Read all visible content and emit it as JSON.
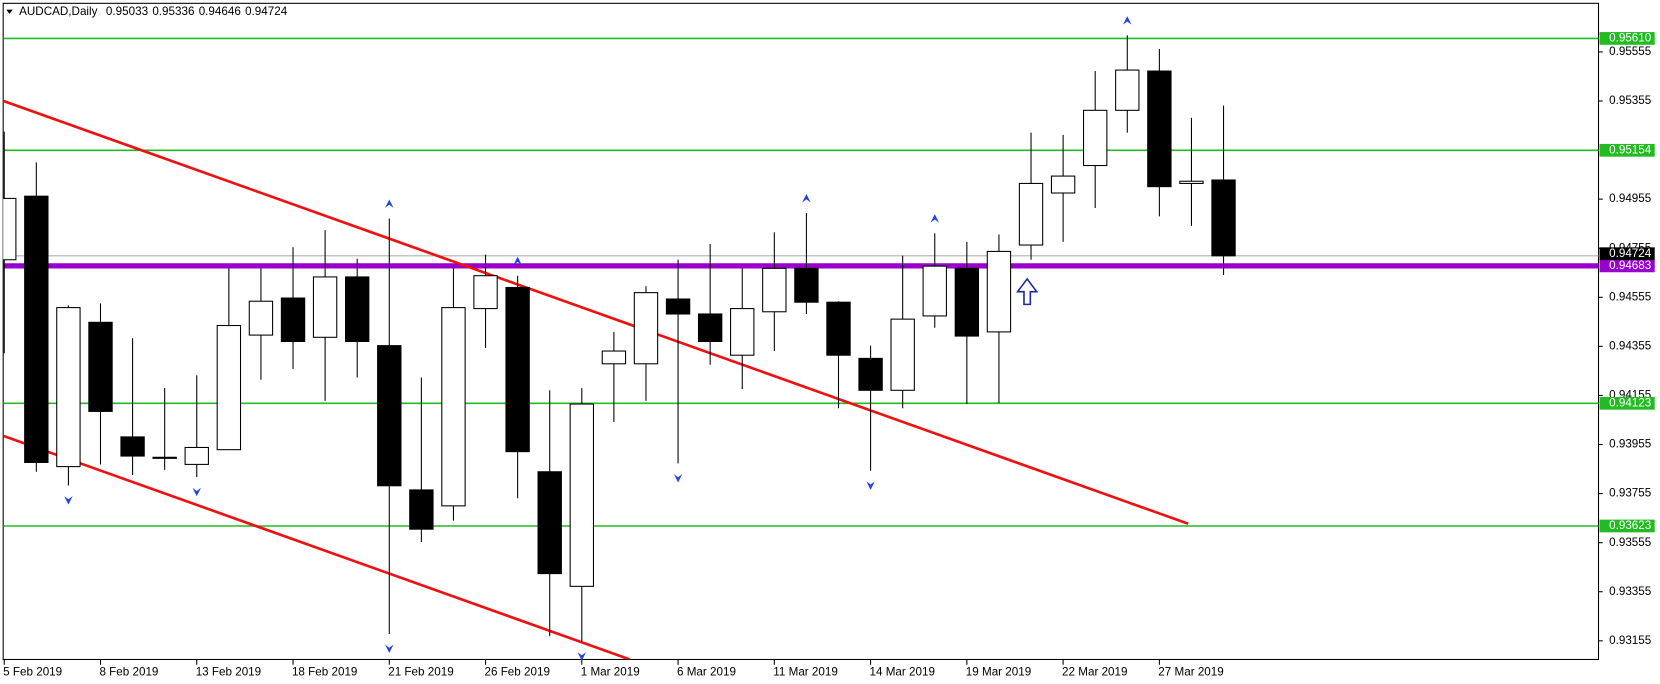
{
  "chart_data": {
    "type": "candlestick",
    "title": "AUDCAD,Daily",
    "categories": [
      "5 Feb 2019",
      null,
      null,
      "8 Feb 2019",
      null,
      null,
      "13 Feb 2019",
      null,
      null,
      "18 Feb 2019",
      null,
      null,
      "21 Feb 2019",
      null,
      null,
      "26 Feb 2019",
      null,
      null,
      "1 Mar 2019",
      null,
      null,
      "6 Mar 2019",
      null,
      null,
      "11 Mar 2019",
      null,
      null,
      "14 Mar 2019",
      null,
      null,
      "19 Mar 2019",
      null,
      null,
      "22 Mar 2019",
      null,
      null,
      "27 Mar 2019",
      null,
      null
    ],
    "open": [
      0.94708,
      0.94967,
      0.93865,
      0.94453,
      0.93986,
      0.939,
      0.93874,
      0.93934,
      0.94401,
      0.94552,
      0.94392,
      0.94638,
      0.94358,
      0.9377,
      0.93705,
      0.94509,
      0.94595,
      0.93844,
      0.93377,
      0.94284,
      0.94284,
      0.94548,
      0.94487,
      0.94319,
      0.94496,
      0.94673,
      0.94535,
      0.94306,
      0.94176,
      0.94479,
      0.94673,
      0.94414,
      0.94768,
      0.9498,
      0.95092,
      0.95317,
      0.95477,
      0.95019,
      0.95033
    ],
    "high": [
      0.9523,
      0.95105,
      0.94522,
      0.9453,
      0.94388,
      0.94185,
      0.94237,
      0.94673,
      0.94673,
      0.94759,
      0.94829,
      0.94712,
      0.94876,
      0.94228,
      0.94686,
      0.94729,
      0.94643,
      0.94176,
      0.94185,
      0.94414,
      0.946,
      0.94708,
      0.94772,
      0.94673,
      0.9482,
      0.94898,
      0.94539,
      0.94358,
      0.94725,
      0.94816,
      0.94781,
      0.94811,
      0.95226,
      0.95217,
      0.95477,
      0.95623,
      0.95567,
      0.95286,
      0.95336
    ],
    "low": [
      0.94327,
      0.93844,
      0.93788,
      0.93874,
      0.93831,
      0.93852,
      0.93822,
      0.93934,
      0.94219,
      0.94263,
      0.94133,
      0.94228,
      0.93183,
      0.93558,
      0.93645,
      0.94349,
      0.93736,
      0.93174,
      0.93152,
      0.94047,
      0.94133,
      0.93878,
      0.9428,
      0.94181,
      0.94336,
      0.94487,
      0.94103,
      0.93848,
      0.94103,
      0.94431,
      0.9412,
      0.94124,
      0.94708,
      0.94781,
      0.94919,
      0.95226,
      0.94885,
      0.94846,
      0.94646
    ],
    "close": [
      0.94958,
      0.93882,
      0.94513,
      0.9409,
      0.93908,
      0.93903,
      0.93943,
      0.9444,
      0.94539,
      0.94375,
      0.94638,
      0.94375,
      0.93787,
      0.9361,
      0.94513,
      0.94643,
      0.93926,
      0.93429,
      0.9412,
      0.94336,
      0.94574,
      0.94487,
      0.94375,
      0.94509,
      0.94673,
      0.94535,
      0.94319,
      0.94176,
      0.94466,
      0.94682,
      0.94397,
      0.94742,
      0.95019,
      0.95049,
      0.95317,
      0.95481,
      0.95006,
      0.95028,
      0.94724
    ],
    "ylim": [
      0.93079,
      0.95766
    ],
    "yticks": [
      0.95555,
      0.95355,
      0.94955,
      0.94755,
      0.94555,
      0.94355,
      0.94155,
      0.93955,
      0.93755,
      0.93555,
      0.93355,
      0.93155
    ],
    "levels": [
      {
        "value": 0.9561,
        "label": "0.95610",
        "color": "#22bb22"
      },
      {
        "value": 0.95154,
        "color": "#22bb22"
      },
      {
        "value": 0.94123,
        "color": "#22bb22"
      },
      {
        "value": 0.93623,
        "color": "#22bb22"
      },
      {
        "value": 0.94683,
        "color": "#9900cc"
      }
    ],
    "current_price": 0.94724,
    "trendlines": [
      {
        "x": [
          -0.13,
          36.9
        ],
        "y": [
          0.9536,
          0.93632
        ],
        "color": "#ee1111"
      },
      {
        "x": [
          -0.13,
          19.5
        ],
        "y": [
          0.93995,
          0.93079
        ],
        "color": "#ee1111"
      }
    ],
    "fractals_up": [
      12,
      16,
      25,
      29,
      35
    ],
    "fractals_down": [
      2,
      6,
      12,
      18,
      21,
      27
    ]
  }
}
